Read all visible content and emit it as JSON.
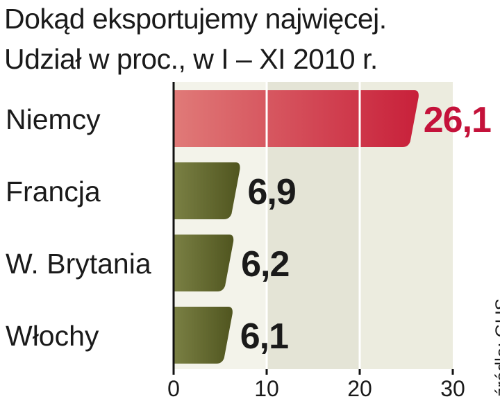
{
  "chart_data": {
    "type": "bar",
    "title": "Dokąd eksportujemy najwięcej.",
    "subtitle": "Udział w proc., w I – XI 2010 r.",
    "categories": [
      "Niemcy",
      "Francja",
      "W. Brytania",
      "Włochy"
    ],
    "values": [
      26.1,
      6.9,
      6.2,
      6.1
    ],
    "value_labels": [
      "26,1",
      "6,9",
      "6,2",
      "6,1"
    ],
    "xlim": [
      0,
      30
    ],
    "xticks": [
      0,
      10,
      20,
      30
    ],
    "xtick_labels": [
      "0",
      "10",
      "20",
      "30"
    ],
    "highlight_index": 0,
    "source": "źródło: GUS",
    "colors": {
      "highlight_bar": "#c8203a",
      "highlight_label": "#c4123a",
      "other_bar": "#5a5f2a",
      "plot_background": "#e4e4d6",
      "text": "#1a1a1a"
    }
  }
}
